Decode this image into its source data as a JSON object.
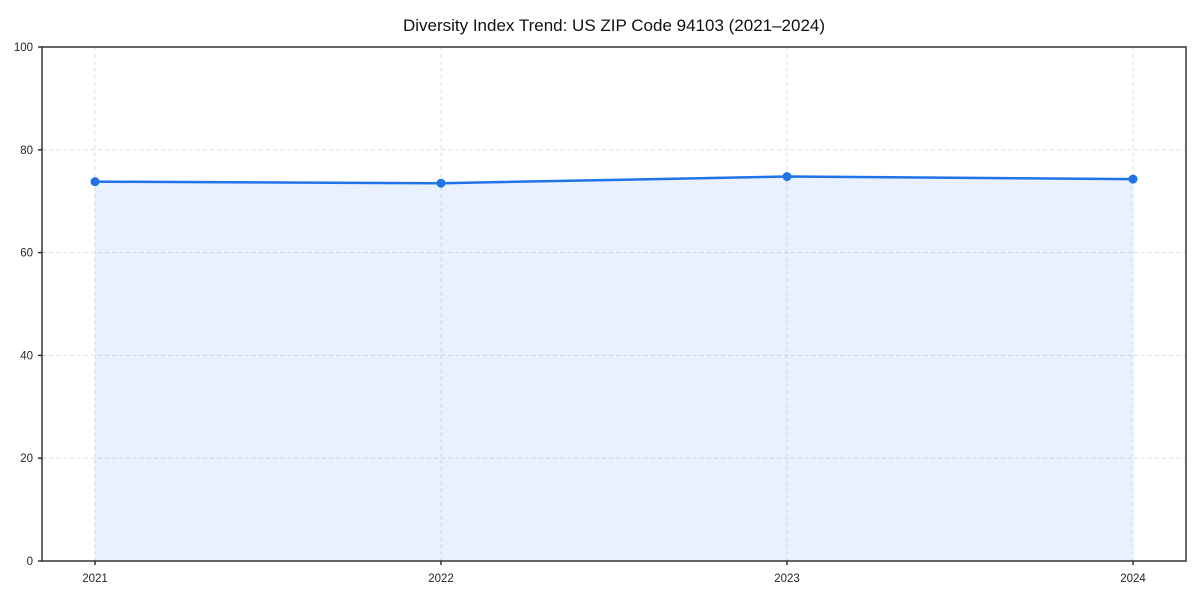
{
  "chart_data": {
    "type": "area",
    "title": "Diversity Index Trend: US ZIP Code 94103 (2021–2024)",
    "categories": [
      "2021",
      "2022",
      "2023",
      "2024"
    ],
    "series": [
      {
        "name": "Diversity Index",
        "values": [
          73.8,
          73.5,
          74.8,
          74.3
        ]
      }
    ],
    "xlabel": "",
    "ylabel": "",
    "ylim": [
      0,
      100
    ],
    "yticks": [
      0,
      20,
      40,
      60,
      80,
      100
    ],
    "grid": true,
    "grid_style": "dashed",
    "legend": false,
    "line_color": "#2173e8",
    "fill_color": "rgba(33, 115, 232, 0.10)",
    "marker": "circle",
    "axis_color": "#262626",
    "grid_color": "#e0e0e0",
    "tick_label_color": "#262626",
    "title_color": "#111111"
  }
}
